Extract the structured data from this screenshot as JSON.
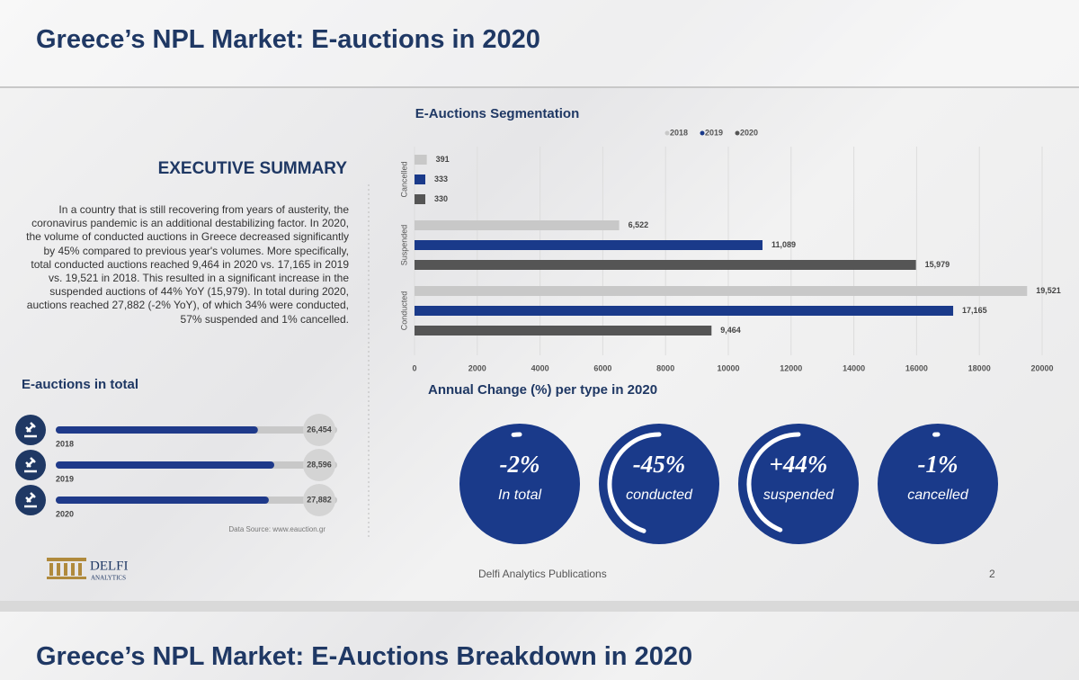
{
  "title": "Greece’s NPL Market: E-auctions in 2020",
  "summary": {
    "heading": "EXECUTIVE SUMMARY",
    "text": "In a country that is still recovering from years of austerity, the coronavirus pandemic is an additional destabilizing factor. In 2020, the volume of conducted auctions in Greece decreased significantly by 45% compared to previous year's volumes. More specifically, total conducted auctions reached 9,464 in 2020 vs. 17,165 in 2019 vs. 19,521 in 2018. This resulted in a significant increase in the suspended auctions of 44% YoY (15,979). In total during 2020, auctions reached 27,882 (-2% YoY), of which 34% were conducted, 57% suspended and 1% cancelled."
  },
  "chart_data": {
    "type": "bar",
    "orientation": "horizontal",
    "title": "E-Auctions Segmentation",
    "categories": [
      "Cancelled",
      "Suspended",
      "Conducted"
    ],
    "series": [
      {
        "name": "2018",
        "color": "#c8c8c8",
        "values": [
          391,
          6522,
          19521
        ],
        "value_labels": [
          "391",
          "6,522",
          "19,521"
        ]
      },
      {
        "name": "2019",
        "color": "#1a3a8a",
        "values": [
          333,
          11089,
          17165
        ],
        "value_labels": [
          "333",
          "11,089",
          "17,165"
        ]
      },
      {
        "name": "2020",
        "color": "#555555",
        "values": [
          330,
          15979,
          9464
        ],
        "value_labels": [
          "330",
          "15,979",
          "9,464"
        ]
      }
    ],
    "xlim": [
      0,
      20000
    ],
    "xticks": [
      0,
      2000,
      4000,
      6000,
      8000,
      10000,
      12000,
      14000,
      16000,
      18000,
      20000
    ],
    "grid": true,
    "legend": "top"
  },
  "totals": {
    "title": "E-auctions in total",
    "items": [
      {
        "year": "2018",
        "value": 26454,
        "value_label": "26,454"
      },
      {
        "year": "2019",
        "value": 28596,
        "value_label": "28,596"
      },
      {
        "year": "2020",
        "value": 27882,
        "value_label": "27,882"
      }
    ],
    "source": "Data Source: www.eauction.gr"
  },
  "annual_change": {
    "title": "Annual Change (%) per type in 2020",
    "items": [
      {
        "value": -2,
        "value_label": "-2%",
        "label": "In total"
      },
      {
        "value": -45,
        "value_label": "-45%",
        "label": "conducted"
      },
      {
        "value": 44,
        "value_label": "+44%",
        "label": "suspended"
      },
      {
        "value": -1,
        "value_label": "-1%",
        "label": "cancelled"
      }
    ]
  },
  "footer": {
    "logo": "DELFI",
    "logo_sub": "ANALYTICS",
    "publisher": "Delfi Analytics Publications",
    "page": "2"
  },
  "next_title": "Greece’s NPL Market: E-Auctions Breakdown in 2020"
}
